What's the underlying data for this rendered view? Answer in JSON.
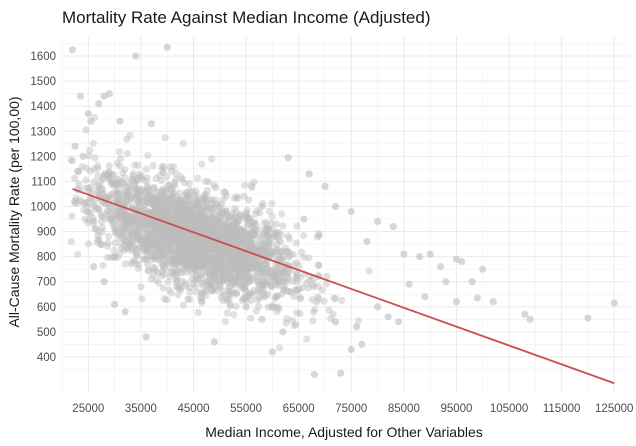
{
  "chart_data": {
    "type": "scatter",
    "title": "Mortality Rate Against Median Income (Adjusted)",
    "xlabel": "Median Income, Adjusted for Other Variables",
    "ylabel": "All-Cause Mortality Rate (per 100,00)",
    "xlim": [
      20000,
      128000
    ],
    "ylim": [
      260,
      1680
    ],
    "xticks": [
      25000,
      35000,
      45000,
      55000,
      65000,
      75000,
      85000,
      95000,
      105000,
      115000,
      125000
    ],
    "yticks": [
      400,
      500,
      600,
      700,
      800,
      900,
      1000,
      1100,
      1200,
      1300,
      1400,
      1500,
      1600
    ],
    "grid": true,
    "point_color": "#bdbdbd",
    "line_color": "#c9504d",
    "trend_line": {
      "x": [
        22000,
        125000
      ],
      "y": [
        1070,
        295
      ]
    },
    "cloud": {
      "n": 2600,
      "center_x": 45000,
      "center_y": 875,
      "sd_x": 9500,
      "slope": -0.0075,
      "sd_y_resid": 95
    },
    "points": [
      {
        "x": 22000,
        "y": 1625
      },
      {
        "x": 40000,
        "y": 1635
      },
      {
        "x": 34000,
        "y": 1600
      },
      {
        "x": 23500,
        "y": 1440
      },
      {
        "x": 28000,
        "y": 1440
      },
      {
        "x": 29000,
        "y": 1450
      },
      {
        "x": 27000,
        "y": 1410
      },
      {
        "x": 25000,
        "y": 1370
      },
      {
        "x": 25500,
        "y": 1340
      },
      {
        "x": 31000,
        "y": 1340
      },
      {
        "x": 37000,
        "y": 1330
      },
      {
        "x": 22500,
        "y": 1240
      },
      {
        "x": 24000,
        "y": 1200
      },
      {
        "x": 23000,
        "y": 1140
      },
      {
        "x": 63000,
        "y": 1195
      },
      {
        "x": 67000,
        "y": 1130
      },
      {
        "x": 70000,
        "y": 1080
      },
      {
        "x": 72000,
        "y": 1000
      },
      {
        "x": 58000,
        "y": 1000
      },
      {
        "x": 75000,
        "y": 980
      },
      {
        "x": 80000,
        "y": 940
      },
      {
        "x": 83000,
        "y": 920
      },
      {
        "x": 66000,
        "y": 950
      },
      {
        "x": 78000,
        "y": 860
      },
      {
        "x": 85000,
        "y": 810
      },
      {
        "x": 88000,
        "y": 800
      },
      {
        "x": 90000,
        "y": 810
      },
      {
        "x": 92000,
        "y": 760
      },
      {
        "x": 95000,
        "y": 790
      },
      {
        "x": 96000,
        "y": 780
      },
      {
        "x": 100000,
        "y": 750
      },
      {
        "x": 98000,
        "y": 700
      },
      {
        "x": 93000,
        "y": 700
      },
      {
        "x": 86000,
        "y": 690
      },
      {
        "x": 89000,
        "y": 640
      },
      {
        "x": 95000,
        "y": 620
      },
      {
        "x": 99000,
        "y": 635
      },
      {
        "x": 102000,
        "y": 620
      },
      {
        "x": 108000,
        "y": 570
      },
      {
        "x": 109000,
        "y": 550
      },
      {
        "x": 120000,
        "y": 555
      },
      {
        "x": 125000,
        "y": 615
      },
      {
        "x": 80000,
        "y": 600
      },
      {
        "x": 82000,
        "y": 560
      },
      {
        "x": 84000,
        "y": 540
      },
      {
        "x": 76000,
        "y": 520
      },
      {
        "x": 72000,
        "y": 540
      },
      {
        "x": 77000,
        "y": 450
      },
      {
        "x": 75000,
        "y": 430
      },
      {
        "x": 68000,
        "y": 330
      },
      {
        "x": 73000,
        "y": 335
      },
      {
        "x": 36000,
        "y": 480
      },
      {
        "x": 49000,
        "y": 460
      },
      {
        "x": 60000,
        "y": 420
      },
      {
        "x": 32000,
        "y": 580
      },
      {
        "x": 30000,
        "y": 610
      },
      {
        "x": 28000,
        "y": 700
      },
      {
        "x": 26000,
        "y": 760
      },
      {
        "x": 27500,
        "y": 850
      },
      {
        "x": 30000,
        "y": 800
      },
      {
        "x": 55000,
        "y": 600
      },
      {
        "x": 58000,
        "y": 550
      },
      {
        "x": 62000,
        "y": 500
      }
    ]
  }
}
